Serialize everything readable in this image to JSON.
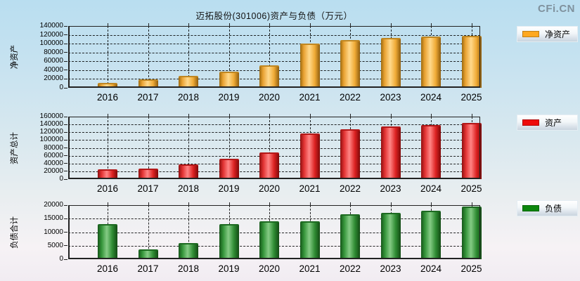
{
  "page": {
    "title": "迈拓股份(301006)资产与负债（万元）",
    "watermark": "CFi.CN"
  },
  "categories": [
    "2016",
    "2017",
    "2018",
    "2019",
    "2020",
    "2021",
    "2022",
    "2023",
    "2024",
    "2025"
  ],
  "chart_data": [
    {
      "type": "bar",
      "title": "净资产",
      "ylabel": "净资产",
      "legend": "净资产",
      "legend_position": "right",
      "bar_color": "#ffa81f",
      "categories": [
        "2016",
        "2017",
        "2018",
        "2019",
        "2020",
        "2021",
        "2022",
        "2023",
        "2024",
        "2025"
      ],
      "values": [
        10400,
        18800,
        26500,
        37000,
        51500,
        100000,
        108000,
        113500,
        115500,
        118500
      ],
      "ylim": [
        0,
        140000
      ],
      "ytick_step": 20000,
      "yticks": [
        "0",
        "20000",
        "40000",
        "60000",
        "80000",
        "100000",
        "120000",
        "140000"
      ],
      "grid": true
    },
    {
      "type": "bar",
      "title": "资产总计",
      "ylabel": "资产总计",
      "legend": "资产",
      "legend_position": "right",
      "bar_color": "#ee0b0b",
      "categories": [
        "2016",
        "2017",
        "2018",
        "2019",
        "2020",
        "2021",
        "2022",
        "2023",
        "2024",
        "2025"
      ],
      "values": [
        25500,
        26500,
        37500,
        53000,
        68000,
        117000,
        128000,
        135000,
        138000,
        143000
      ],
      "ylim": [
        0,
        160000
      ],
      "ytick_step": 20000,
      "yticks": [
        "0",
        "20000",
        "40000",
        "60000",
        "80000",
        "100000",
        "120000",
        "140000",
        "160000"
      ],
      "grid": true
    },
    {
      "type": "bar",
      "title": "负债合计",
      "ylabel": "负债合计",
      "legend": "负债",
      "legend_position": "right",
      "bar_color": "#0c860c",
      "categories": [
        "2016",
        "2017",
        "2018",
        "2019",
        "2020",
        "2021",
        "2022",
        "2023",
        "2024",
        "2025"
      ],
      "values": [
        13000,
        3700,
        6100,
        13100,
        13900,
        14100,
        16500,
        17200,
        17800,
        19500
      ],
      "ylim": [
        0,
        20000
      ],
      "ytick_step": 5000,
      "yticks": [
        "0",
        "5000",
        "10000",
        "15000",
        "20000"
      ],
      "grid": true
    }
  ]
}
